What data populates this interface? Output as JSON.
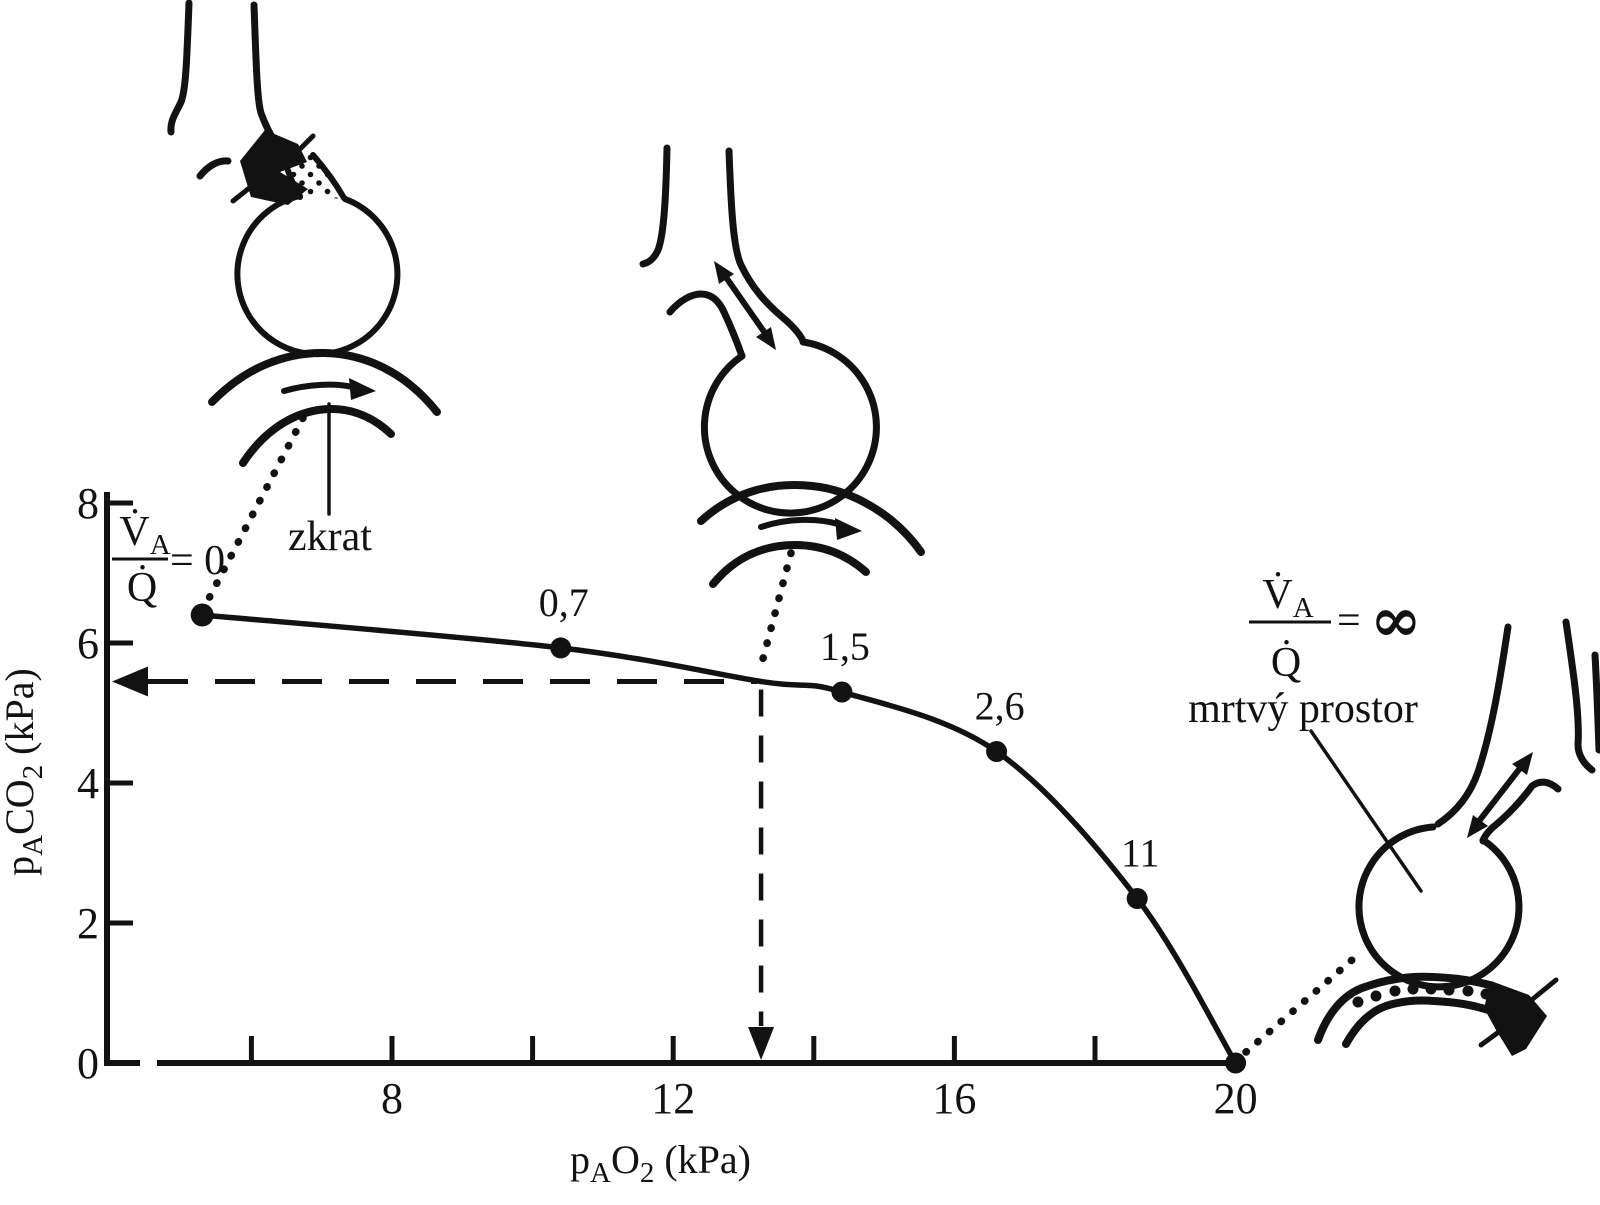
{
  "colors": {
    "ink": "#121212",
    "background": "#ffffff"
  },
  "axes": {
    "x": {
      "label_parts": {
        "p": "p",
        "sub1": "A",
        "main": "O",
        "sub2": "2",
        "unit": " (kPa)"
      },
      "tick_labels": [
        "8",
        "12",
        "16",
        "20"
      ]
    },
    "y": {
      "label_parts": {
        "p": "p",
        "sub1": "A",
        "main": "CO",
        "sub2": "2",
        "unit": " (kPa)"
      },
      "tick_labels": [
        "0",
        "2",
        "4",
        "6",
        "8"
      ]
    }
  },
  "annotations": {
    "shunt": "zkrat",
    "dead_space": "mrtvý prostor",
    "eq_zero": {
      "num_main": "V̇",
      "num_sub": "A",
      "den": "Q̇",
      "rhs": "= 0"
    },
    "eq_inf": {
      "num_main": "V̇",
      "num_sub": "A",
      "den": "Q̇",
      "eq": "=",
      "value": "∞"
    }
  },
  "chart_data": {
    "type": "line",
    "title": "",
    "xlabel": "pAO2 (kPa)",
    "ylabel": "pACO2 (kPa)",
    "xlim": [
      4,
      21.5
    ],
    "ylim": [
      0,
      8
    ],
    "grid": false,
    "x_ticks_marks": [
      6,
      8,
      10,
      12,
      14,
      16,
      18
    ],
    "x_ticks_labeled": [
      8,
      12,
      16,
      20
    ],
    "y_ticks_marks": [
      2,
      4,
      6,
      8
    ],
    "y_ticks_labeled": [
      0,
      2,
      4,
      6,
      8
    ],
    "series": [
      {
        "name": "V̇A/Q̇ line",
        "points": [
          {
            "x": 5.3,
            "y": 6.4,
            "marker": true,
            "ratio_label": ""
          },
          {
            "x": 10.4,
            "y": 5.93,
            "marker": true,
            "ratio_label": "0,7"
          },
          {
            "x": 13.25,
            "y": 5.45,
            "marker": false,
            "ratio_label": ""
          },
          {
            "x": 14.4,
            "y": 5.3,
            "marker": true,
            "ratio_label": "1,5"
          },
          {
            "x": 16.6,
            "y": 4.45,
            "marker": true,
            "ratio_label": "2,6"
          },
          {
            "x": 18.6,
            "y": 2.35,
            "marker": true,
            "ratio_label": "11"
          },
          {
            "x": 20.0,
            "y": 0.0,
            "marker": true,
            "ratio_label": ""
          }
        ]
      }
    ],
    "reference_point": {
      "x": 13.25,
      "y": 5.45,
      "style": "dashed arrows to both axes"
    },
    "endpoint_equations": {
      "left": "V̇A/Q̇ = 0",
      "right": "V̇A/Q̇ = ∞"
    }
  }
}
